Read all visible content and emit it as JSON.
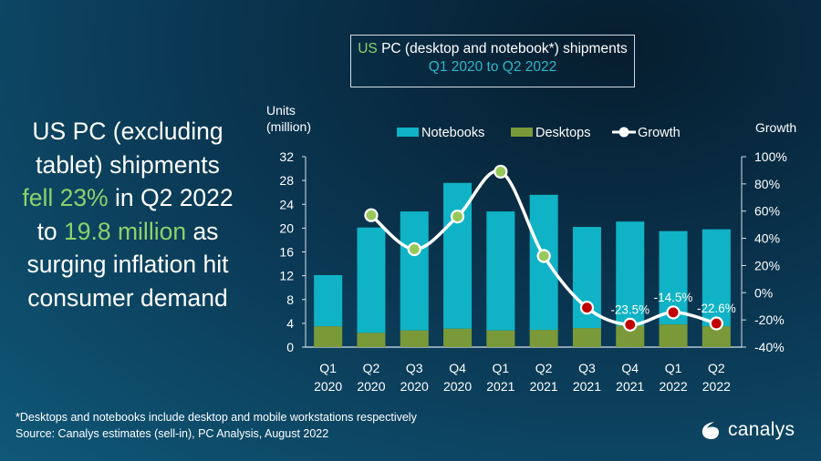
{
  "title": {
    "prefix": "US",
    "rest": " PC (desktop and notebook*) shipments",
    "subtitle": "Q1 2020 to Q2 2022"
  },
  "headline": {
    "line1": "US PC (excluding",
    "line2": "tablet) shipments",
    "line3_hl": "fell 23%",
    "line3_rest": " in Q2 2022",
    "line4_pre": "to ",
    "line4_hl": "19.8 million",
    "line4_rest": " as",
    "line5": "surging inflation hit",
    "line6": "consumer demand"
  },
  "footnote": {
    "line1": "*Desktops and notebooks include desktop and mobile workstations respectively",
    "line2": "Source: Canalys estimates (sell-in), PC Analysis, August 2022"
  },
  "logo": {
    "name": "canalys"
  },
  "colors": {
    "notebooks": "#0fb3c5",
    "desktops": "#7a9a3a",
    "growth_line": "#ffffff",
    "positive_marker": "#96c85a",
    "negative_marker": "#c00000",
    "highlight_text": "#8ed16b",
    "subtitle_text": "#2fb7c8"
  },
  "chart_data": {
    "type": "bar",
    "stacked": true,
    "title": "US PC (desktop and notebook*) shipments",
    "subtitle": "Q1 2020 to Q2 2022",
    "ylabel": "Units (million)",
    "y2label": "Growth",
    "categories": [
      "Q1 2020",
      "Q2 2020",
      "Q3 2020",
      "Q4 2020",
      "Q1 2021",
      "Q2 2021",
      "Q3 2021",
      "Q4 2021",
      "Q1 2022",
      "Q2 2022"
    ],
    "category_lines": [
      [
        "Q1",
        "2020"
      ],
      [
        "Q2",
        "2020"
      ],
      [
        "Q3",
        "2020"
      ],
      [
        "Q4",
        "2020"
      ],
      [
        "Q1",
        "2021"
      ],
      [
        "Q2",
        "2021"
      ],
      [
        "Q3",
        "2021"
      ],
      [
        "Q4",
        "2021"
      ],
      [
        "Q1",
        "2022"
      ],
      [
        "Q2",
        "2022"
      ]
    ],
    "ylim": [
      0,
      32
    ],
    "yticks": [
      0,
      4,
      8,
      12,
      16,
      20,
      24,
      28,
      32
    ],
    "y2lim": [
      -40,
      100
    ],
    "y2ticks": [
      -40,
      -20,
      0,
      20,
      40,
      60,
      80,
      100
    ],
    "y2tick_labels": [
      "-40%",
      "-20%",
      "0%",
      "20%",
      "40%",
      "60%",
      "80%",
      "100%"
    ],
    "legend": [
      "Notebooks",
      "Desktops",
      "Growth"
    ],
    "legend_position": "top",
    "series": [
      {
        "name": "Desktops",
        "type": "bar",
        "values": [
          3.5,
          2.4,
          2.8,
          3.1,
          2.8,
          2.9,
          3.2,
          3.6,
          3.8,
          3.5
        ]
      },
      {
        "name": "Notebooks",
        "type": "bar",
        "values": [
          8.6,
          17.7,
          20.0,
          24.5,
          20.0,
          22.7,
          17.0,
          17.5,
          15.7,
          16.3
        ]
      },
      {
        "name": "Growth",
        "type": "line",
        "axis": "right",
        "unit": "%",
        "values": [
          null,
          57,
          32,
          56,
          89,
          27,
          -11,
          -23.5,
          -14.5,
          -22.6
        ]
      }
    ],
    "totals": [
      12.1,
      20.1,
      22.8,
      27.6,
      22.8,
      25.6,
      20.2,
      21.1,
      19.5,
      19.8
    ],
    "data_labels": [
      {
        "index": 7,
        "text": "-23.5%"
      },
      {
        "index": 8,
        "text": "-14.5%"
      },
      {
        "index": 9,
        "text": "-22.6%"
      }
    ]
  }
}
